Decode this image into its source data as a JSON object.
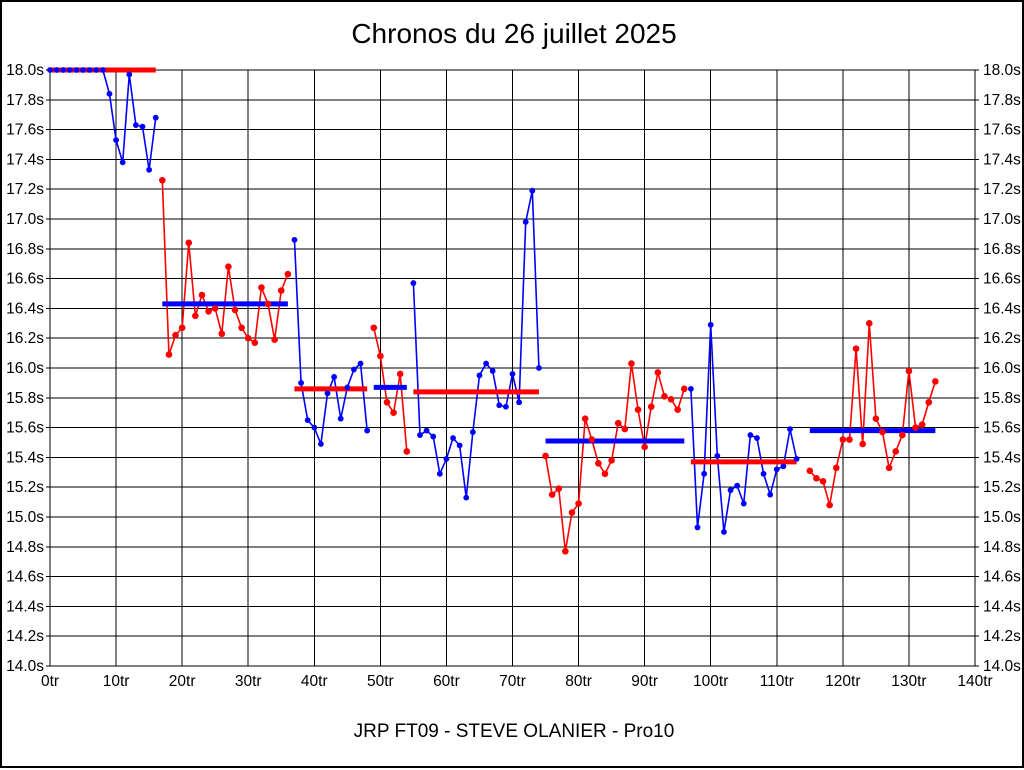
{
  "chart_data": {
    "type": "line",
    "title": "Chronos du 26 juillet 2025",
    "footer": "JRP FT09 - STEVE OLANIER - Pro10",
    "xlim": [
      0,
      140
    ],
    "ylim": [
      14.0,
      18.0
    ],
    "x_tick_step": 10,
    "y_tick_step": 0.2,
    "x_tick_labels": [
      "0tr",
      "10tr",
      "20tr",
      "30tr",
      "40tr",
      "50tr",
      "60tr",
      "70tr",
      "80tr",
      "90tr",
      "100tr",
      "110tr",
      "120tr",
      "130tr",
      "140tr"
    ],
    "y_tick_labels": [
      "18.0s",
      "17.8s",
      "17.6s",
      "17.4s",
      "17.2s",
      "17.0s",
      "16.8s",
      "16.6s",
      "16.4s",
      "16.2s",
      "16.0s",
      "15.8s",
      "15.6s",
      "15.4s",
      "15.2s",
      "15.0s",
      "14.8s",
      "14.6s",
      "14.4s",
      "14.2s",
      "14.0s"
    ],
    "grid": true,
    "legend": "none",
    "colors": {
      "blue": "#0000ff",
      "red": "#ff0000",
      "grid": "#000000",
      "text": "#000000",
      "background": "#ffffff",
      "border": "#000000"
    },
    "segments": [
      {
        "start_lap": 0,
        "point_color": "blue",
        "avg_color": "red",
        "avg": 18.0,
        "values": [
          18.0,
          18.0,
          18.0,
          18.0,
          18.0,
          18.0,
          18.0,
          18.0,
          18.0,
          17.84,
          17.53,
          17.38,
          17.97,
          17.63,
          17.62,
          17.33,
          17.68
        ]
      },
      {
        "start_lap": 17,
        "point_color": "red",
        "avg_color": "blue",
        "avg": 16.43,
        "values": [
          17.26,
          16.09,
          16.22,
          16.27,
          16.84,
          16.35,
          16.49,
          16.38,
          16.4,
          16.23,
          16.68,
          16.39,
          16.27,
          16.2,
          16.17,
          16.54,
          16.43,
          16.19,
          16.52,
          16.63
        ]
      },
      {
        "start_lap": 37,
        "point_color": "blue",
        "avg_color": "red",
        "avg": 15.86,
        "values": [
          16.86,
          15.9,
          15.65,
          15.6,
          15.49,
          15.83,
          15.94,
          15.66,
          15.87,
          15.99,
          16.03,
          15.58
        ]
      },
      {
        "start_lap": 49,
        "point_color": "red",
        "avg_color": "blue",
        "avg": 15.87,
        "values": [
          16.27,
          16.08,
          15.77,
          15.7,
          15.96,
          15.44
        ]
      },
      {
        "start_lap": 55,
        "point_color": "blue",
        "avg_color": "red",
        "avg": 15.84,
        "values": [
          16.57,
          15.55,
          15.58,
          15.54,
          15.29,
          15.39,
          15.53,
          15.48,
          15.13,
          15.57,
          15.95,
          16.03,
          15.98,
          15.75,
          15.74,
          15.96,
          15.77,
          16.98,
          17.19,
          16.0
        ]
      },
      {
        "start_lap": 75,
        "point_color": "red",
        "avg_color": "blue",
        "avg": 15.51,
        "values": [
          15.41,
          15.15,
          15.19,
          14.77,
          15.03,
          15.09,
          15.66,
          15.52,
          15.36,
          15.29,
          15.38,
          15.63,
          15.59,
          16.03,
          15.72,
          15.47,
          15.74,
          15.97,
          15.81,
          15.79,
          15.72,
          15.86
        ]
      },
      {
        "start_lap": 97,
        "point_color": "blue",
        "avg_color": "red",
        "avg": 15.37,
        "values": [
          15.86,
          14.93,
          15.29,
          16.29,
          15.41,
          14.9,
          15.18,
          15.21,
          15.09,
          15.55,
          15.53,
          15.29,
          15.15,
          15.32,
          15.34,
          15.59,
          15.39
        ]
      },
      {
        "start_lap": 115,
        "point_color": "red",
        "avg_color": "blue",
        "avg": 15.58,
        "values": [
          15.31,
          15.26,
          15.24,
          15.08,
          15.33,
          15.52,
          15.52,
          16.13,
          15.49,
          16.3,
          15.66,
          15.57,
          15.33,
          15.44,
          15.55,
          15.98,
          15.6,
          15.62,
          15.77,
          15.91
        ]
      }
    ]
  }
}
